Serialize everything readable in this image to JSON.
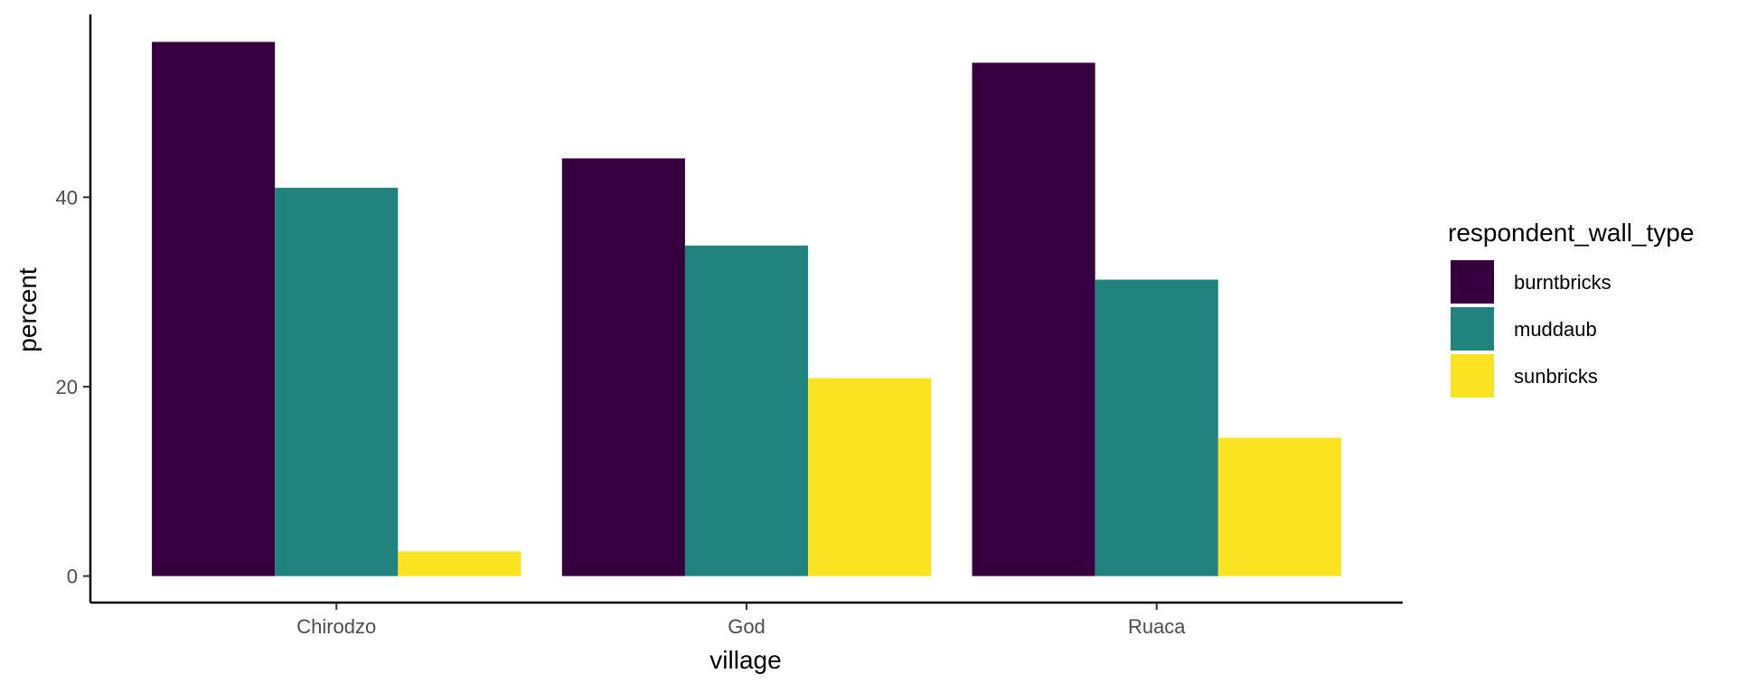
{
  "chart_data": {
    "type": "bar",
    "categories": [
      "Chirodzo",
      "God",
      "Ruaca"
    ],
    "series": [
      {
        "name": "burntbricks",
        "color": "#35003d",
        "values": [
          56.4,
          44.1,
          54.2
        ]
      },
      {
        "name": "muddaub",
        "color": "#21837d",
        "values": [
          41.0,
          34.9,
          31.3
        ]
      },
      {
        "name": "sunbricks",
        "color": "#fbe322",
        "values": [
          2.6,
          20.9,
          14.6
        ]
      }
    ],
    "xlabel": "village",
    "ylabel": "percent",
    "ylim": [
      -2.8,
      59.3
    ],
    "yticks": [
      0,
      20,
      40
    ],
    "legend": {
      "title": "respondent_wall_type",
      "position": "right"
    },
    "grid": false
  }
}
